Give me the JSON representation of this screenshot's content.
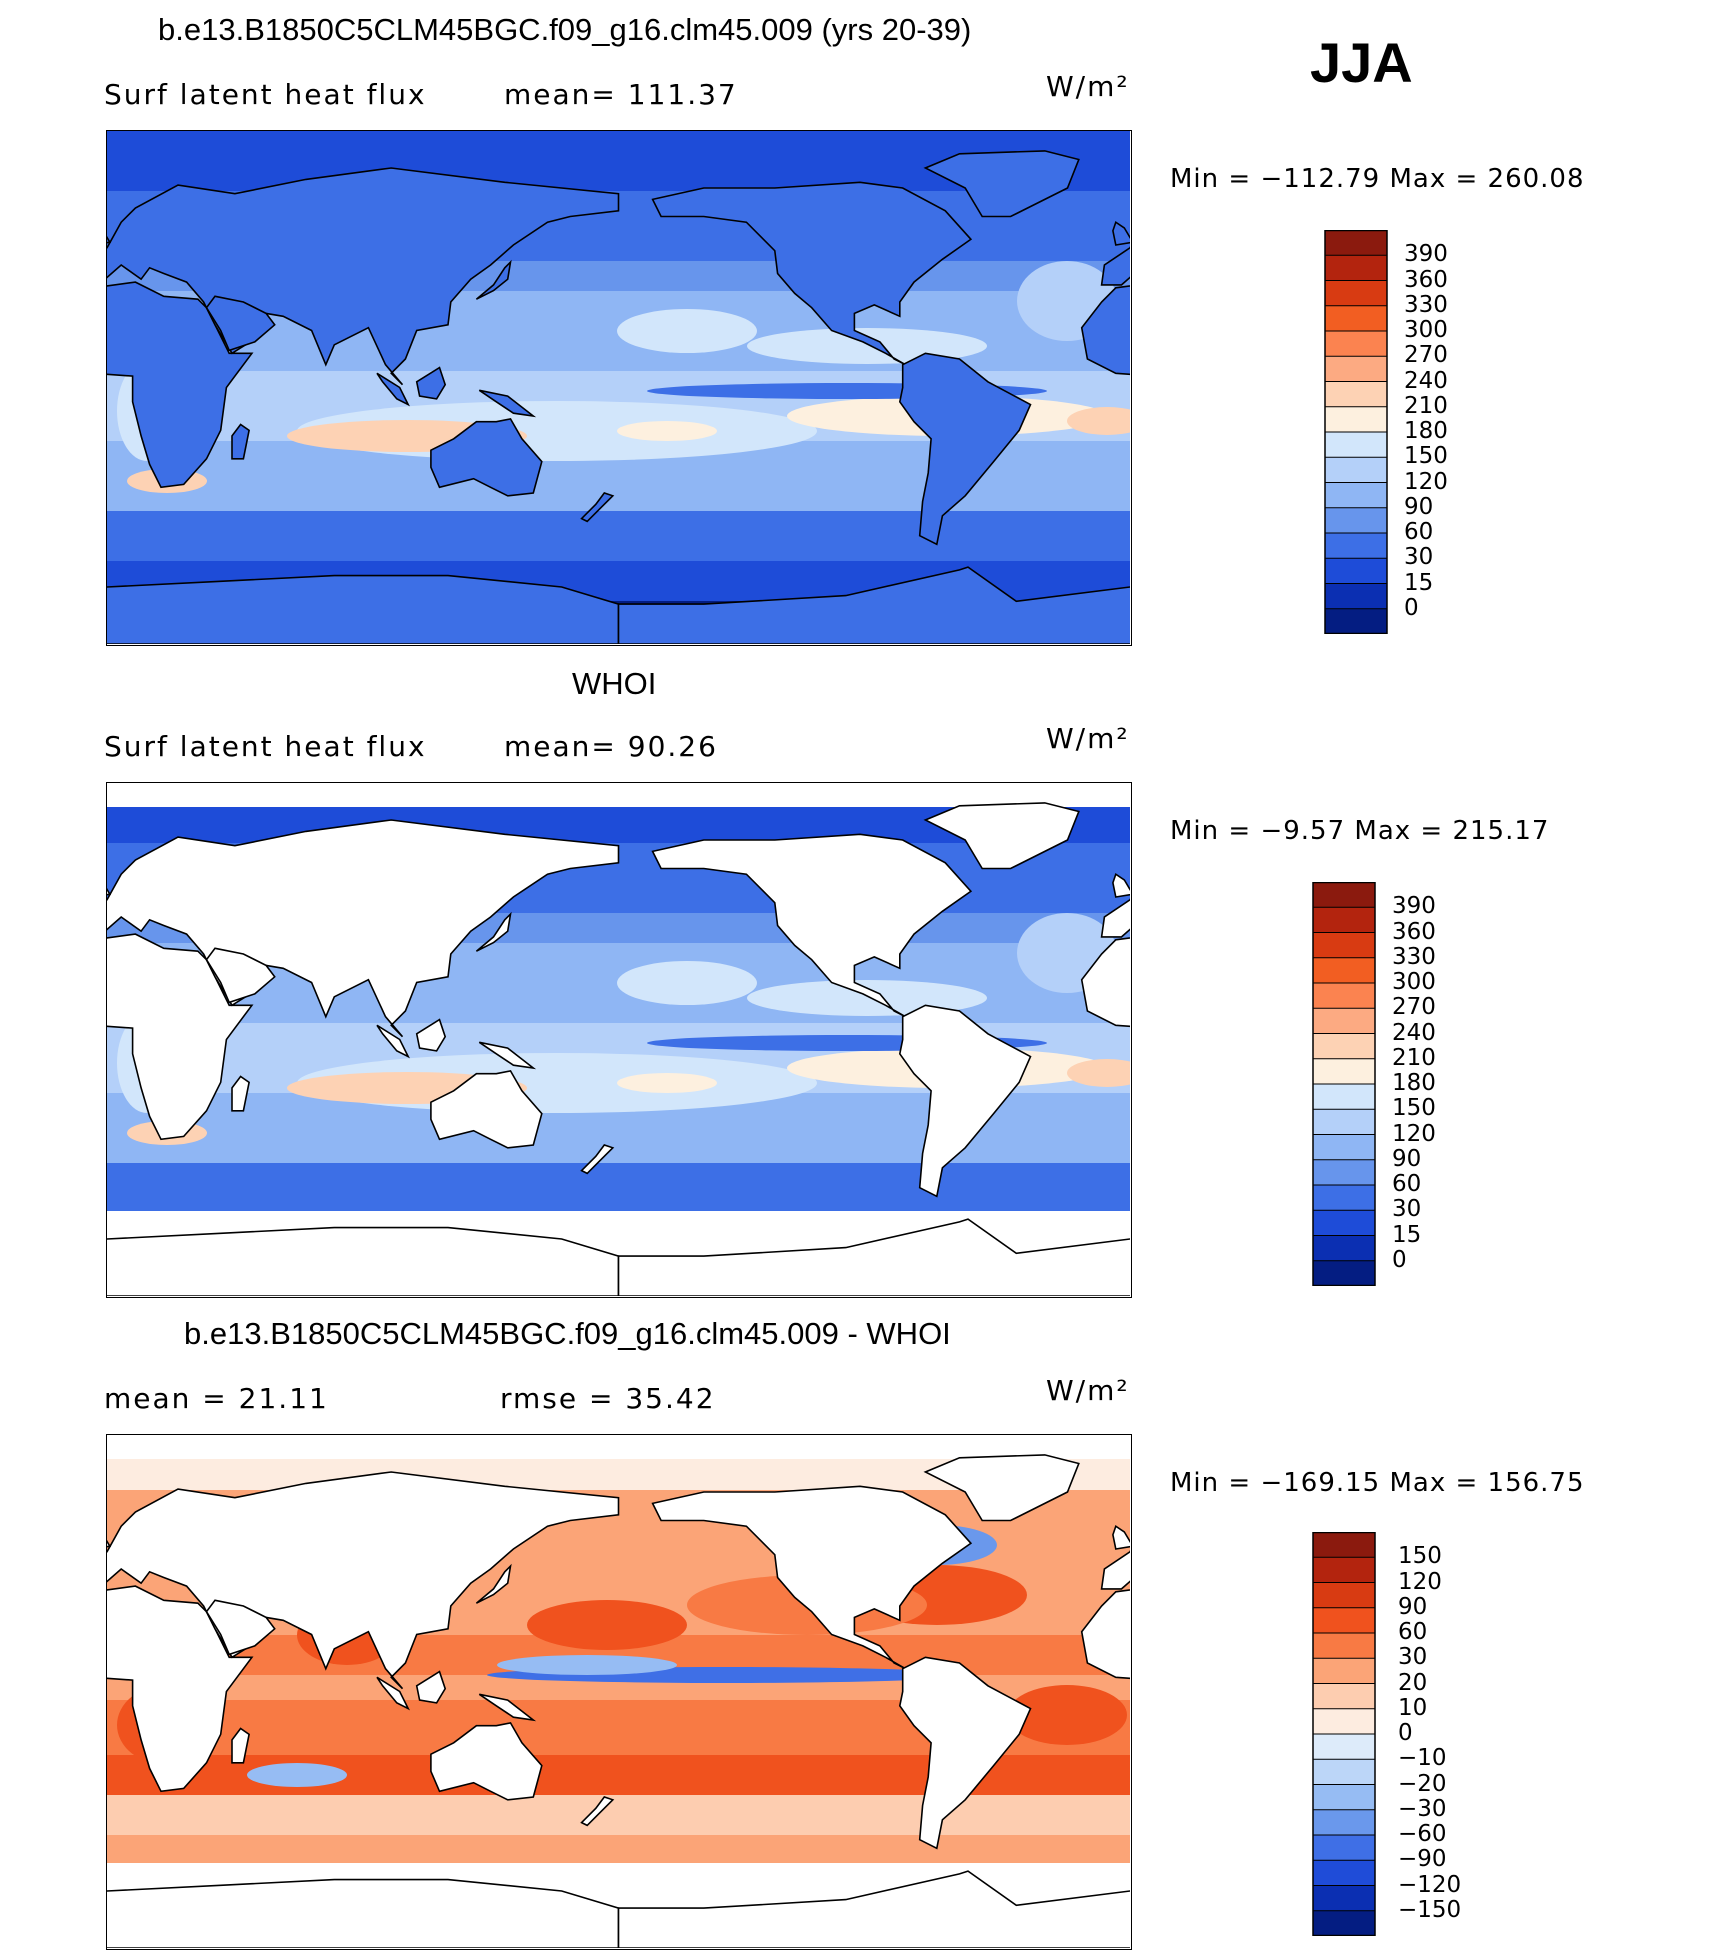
{
  "season": "JJA",
  "panels": [
    {
      "id": "model",
      "title": "b.e13.B1850C5CLM45BGC.f09_g16.clm45.009 (yrs 20-39)",
      "left_label": "Surf latent heat flux",
      "mid_label": "mean=  111.37",
      "units": "W/m²",
      "minmax": "Min  =  −112.79  Max  =  260.08",
      "scale": "abs",
      "mask_high_lat": false
    },
    {
      "id": "obs",
      "title": "WHOI",
      "left_label": "Surf latent heat flux",
      "mid_label": "mean=   90.26",
      "units": "W/m²",
      "minmax": "Min  =    −9.57  Max  =  215.17",
      "scale": "abs",
      "mask_high_lat": true
    },
    {
      "id": "diff",
      "title": "b.e13.B1850C5CLM45BGC.f09_g16.clm45.009 - WHOI",
      "left_label": "mean  =    21.11",
      "mid_label": "rmse  =    35.42",
      "units": "W/m²",
      "minmax": "Min  =  −169.15  Max  =  156.75",
      "scale": "diff",
      "mask_high_lat": true
    }
  ],
  "chart_data": [
    {
      "type": "heatmap",
      "title": "b.e13.B1850C5CLM45BGC.f09_g16.clm45.009 (yrs 20-39)",
      "variable": "Surf latent heat flux",
      "units": "W/m²",
      "mean": 111.37,
      "min": -112.79,
      "max": 260.08,
      "levels": [
        "390",
        "360",
        "330",
        "300",
        "270",
        "240",
        "210",
        "180",
        "150",
        "120",
        "90",
        "60",
        "30",
        "15",
        "0"
      ],
      "colors": [
        "#8b1a0e",
        "#b3240e",
        "#d83b12",
        "#f25e22",
        "#fb8350",
        "#fcaa82",
        "#fdd2b4",
        "#fdf0df",
        "#d2e6fb",
        "#b4d0f9",
        "#8fb6f4",
        "#6795ec",
        "#3d6fe6",
        "#1e4cd8",
        "#0b2fb2",
        "#041d82"
      ]
    },
    {
      "type": "heatmap",
      "title": "WHOI",
      "variable": "Surf latent heat flux",
      "units": "W/m²",
      "mean": 90.26,
      "min": -9.57,
      "max": 215.17,
      "levels": [
        "390",
        "360",
        "330",
        "300",
        "270",
        "240",
        "210",
        "180",
        "150",
        "120",
        "90",
        "60",
        "30",
        "15",
        "0"
      ],
      "colors": [
        "#8b1a0e",
        "#b3240e",
        "#d83b12",
        "#f25e22",
        "#fb8350",
        "#fcaa82",
        "#fdd2b4",
        "#fdf0df",
        "#d2e6fb",
        "#b4d0f9",
        "#8fb6f4",
        "#6795ec",
        "#3d6fe6",
        "#1e4cd8",
        "#0b2fb2",
        "#041d82"
      ]
    },
    {
      "type": "heatmap",
      "title": "b.e13.B1850C5CLM45BGC.f09_g16.clm45.009 - WHOI",
      "units": "W/m²",
      "mean": 21.11,
      "rmse": 35.42,
      "min": -169.15,
      "max": 156.75,
      "levels": [
        "150",
        "120",
        "90",
        "60",
        "30",
        "20",
        "10",
        "0",
        "−10",
        "−20",
        "−30",
        "−60",
        "−90",
        "−120",
        "−150"
      ],
      "colors": [
        "#8b1a0e",
        "#b3240e",
        "#d83b12",
        "#f0521e",
        "#f87a44",
        "#fba477",
        "#fdcdb0",
        "#fdece0",
        "#ddebfa",
        "#bcd6f8",
        "#96bcf3",
        "#6a98ec",
        "#3f6fe6",
        "#1f4cd8",
        "#0b2fb2",
        "#041d82"
      ]
    }
  ]
}
